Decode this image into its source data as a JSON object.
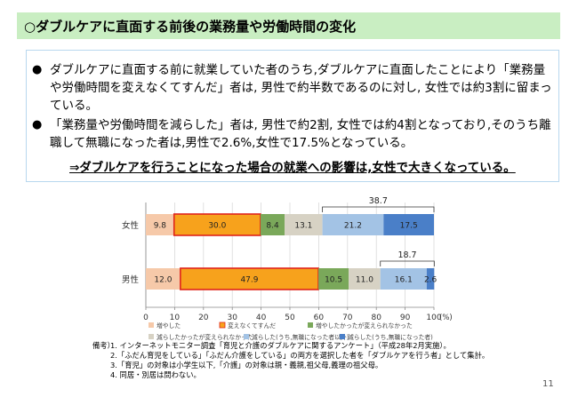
{
  "header": {
    "title": "○ダブルケアに直面する前後の業務量や労働時間の変化"
  },
  "summary": {
    "bullets": [
      {
        "mark": "●",
        "text": "ダブルケアに直面する前に就業していた者のうち,ダブルケアに直面したことにより「業務量や労働時間を変えなくてすんだ」者は, 男性で約半数であるのに対し, 女性では約3割に留まっている。"
      },
      {
        "mark": "●",
        "text": "「業務量や労働時間を減らした」者は, 男性で約2割, 女性では約4割となっており,そのうち離職して無職になった者は,男性で2.6%,女性で17.5%となっている。"
      }
    ],
    "conclusion": "⇒ダブルケアを行うことになった場合の就業への影響は,女性で大きくなっている。"
  },
  "chart_data": {
    "type": "bar",
    "orientation": "horizontal",
    "stacked": true,
    "categories": [
      "女性",
      "男性"
    ],
    "series": [
      {
        "name": "増やした",
        "values": [
          9.8,
          12.0
        ],
        "color": "#f6c9a9"
      },
      {
        "name": "変えなくてすんだ",
        "values": [
          30.0,
          47.9
        ],
        "color": "#f7a21c",
        "border": "#e0241b"
      },
      {
        "name": "増やしたかったが変えられなかった",
        "values": [
          8.4,
          10.5
        ],
        "color": "#7aa85a"
      },
      {
        "name": "減らしたかったが変えられなかった",
        "values": [
          13.1,
          11.0
        ],
        "color": "#d7d2c4"
      },
      {
        "name": "減らした(うち,無職になった者以外)",
        "values": [
          21.2,
          16.1
        ],
        "color": "#a3c3e5"
      },
      {
        "name": "減らした(うち,無職になった者)",
        "values": [
          17.5,
          2.6
        ],
        "color": "#4a7fc8"
      }
    ],
    "bracket_totals": [
      "38.7",
      "18.7"
    ],
    "x_ticks": [
      "0",
      "10",
      "20",
      "30",
      "40",
      "50",
      "60",
      "70",
      "80",
      "90",
      "100"
    ],
    "x_unit": "(%)",
    "xlim": [
      0,
      100
    ],
    "grid": true,
    "legend_position": "bottom"
  },
  "notes": {
    "label": "備考）",
    "lines": [
      "1. インターネットモニター調査「育児と介護のダブルケアに関するアンケート」（平成28年2月実施）。",
      "2.「ふだん育児をしている」「ふだん介護をしている」の両方を選択した者を「ダブルケアを行う者」として集計。",
      "3.「育児」の対象は小学生以下,「介護」の対象は親・義親,祖父母,義理の祖父母。",
      "4. 同居・別居は問わない。"
    ]
  },
  "page_number": "11"
}
